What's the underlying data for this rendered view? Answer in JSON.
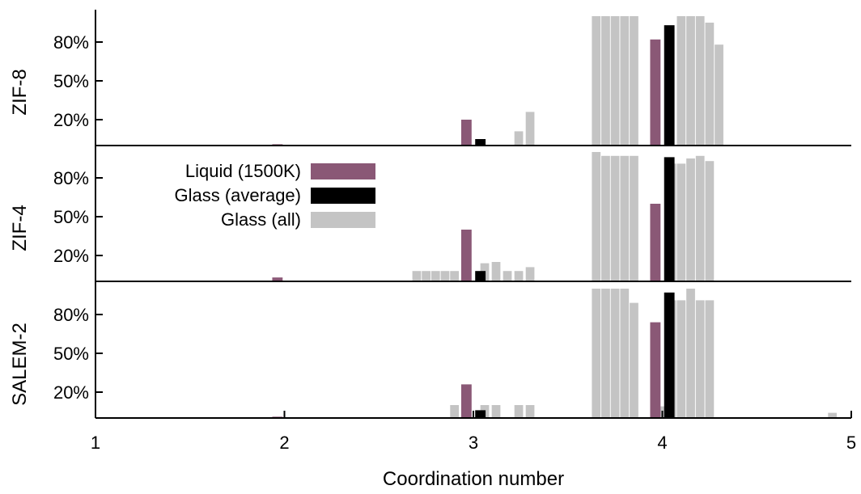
{
  "chart_data": {
    "type": "bar",
    "xlabel": "Coordination number",
    "x_ticks": [
      1,
      2,
      3,
      4,
      5
    ],
    "xlim": [
      1,
      5
    ],
    "ylim": [
      0,
      100
    ],
    "y_ticks": [
      20,
      50,
      80
    ],
    "y_tick_labels": [
      "20%",
      "50%",
      "80%"
    ],
    "legend": {
      "placement": "top-left of middle panel",
      "entries": [
        {
          "label": "Liquid (1500K)",
          "color": "#8a5876"
        },
        {
          "label": "Glass (average)",
          "color": "#000000"
        },
        {
          "label": "Glass (all)",
          "color": "#c4c4c4"
        }
      ]
    },
    "panels": [
      {
        "ylabel": "ZIF-8",
        "liquid": [
          {
            "x": 2,
            "value": 1
          },
          {
            "x": 3,
            "value": 20
          },
          {
            "x": 4,
            "value": 82
          }
        ],
        "glass_average": [
          {
            "x": 3,
            "value": 5
          },
          {
            "x": 4,
            "value": 93
          }
        ],
        "glass_all": [
          {
            "x": 3.24,
            "value": 11
          },
          {
            "x": 3.3,
            "value": 26
          },
          {
            "x": 3.65,
            "value": 100
          },
          {
            "x": 3.7,
            "value": 100
          },
          {
            "x": 3.75,
            "value": 100
          },
          {
            "x": 3.8,
            "value": 100
          },
          {
            "x": 3.85,
            "value": 100
          },
          {
            "x": 4.1,
            "value": 100
          },
          {
            "x": 4.15,
            "value": 100
          },
          {
            "x": 4.2,
            "value": 100
          },
          {
            "x": 4.25,
            "value": 95
          },
          {
            "x": 4.3,
            "value": 78
          }
        ]
      },
      {
        "ylabel": "ZIF-4",
        "liquid": [
          {
            "x": 2,
            "value": 3
          },
          {
            "x": 3,
            "value": 40
          },
          {
            "x": 4,
            "value": 60
          }
        ],
        "glass_average": [
          {
            "x": 3,
            "value": 8
          },
          {
            "x": 4,
            "value": 96
          }
        ],
        "glass_all": [
          {
            "x": 2.7,
            "value": 8
          },
          {
            "x": 2.75,
            "value": 8
          },
          {
            "x": 2.8,
            "value": 8
          },
          {
            "x": 2.85,
            "value": 8
          },
          {
            "x": 2.9,
            "value": 8
          },
          {
            "x": 3.06,
            "value": 14
          },
          {
            "x": 3.12,
            "value": 15
          },
          {
            "x": 3.18,
            "value": 8
          },
          {
            "x": 3.24,
            "value": 8
          },
          {
            "x": 3.3,
            "value": 11
          },
          {
            "x": 3.65,
            "value": 100
          },
          {
            "x": 3.7,
            "value": 97
          },
          {
            "x": 3.75,
            "value": 97
          },
          {
            "x": 3.8,
            "value": 97
          },
          {
            "x": 3.85,
            "value": 97
          },
          {
            "x": 4.05,
            "value": 91
          },
          {
            "x": 4.1,
            "value": 91
          },
          {
            "x": 4.15,
            "value": 95
          },
          {
            "x": 4.2,
            "value": 97
          },
          {
            "x": 4.25,
            "value": 93
          }
        ]
      },
      {
        "ylabel": "SALEM-2",
        "liquid": [
          {
            "x": 2,
            "value": 1
          },
          {
            "x": 3,
            "value": 26
          },
          {
            "x": 4,
            "value": 74
          }
        ],
        "glass_average": [
          {
            "x": 3,
            "value": 6
          },
          {
            "x": 4,
            "value": 97
          }
        ],
        "glass_all": [
          {
            "x": 2.9,
            "value": 10
          },
          {
            "x": 3.06,
            "value": 10
          },
          {
            "x": 3.12,
            "value": 10
          },
          {
            "x": 3.24,
            "value": 10
          },
          {
            "x": 3.3,
            "value": 10
          },
          {
            "x": 3.65,
            "value": 100
          },
          {
            "x": 3.7,
            "value": 100
          },
          {
            "x": 3.75,
            "value": 100
          },
          {
            "x": 3.8,
            "value": 100
          },
          {
            "x": 3.85,
            "value": 89
          },
          {
            "x": 4.0,
            "value": 9
          },
          {
            "x": 4.05,
            "value": 91
          },
          {
            "x": 4.1,
            "value": 91
          },
          {
            "x": 4.15,
            "value": 100
          },
          {
            "x": 4.2,
            "value": 91
          },
          {
            "x": 4.25,
            "value": 91
          },
          {
            "x": 4.9,
            "value": 4
          }
        ]
      }
    ]
  }
}
